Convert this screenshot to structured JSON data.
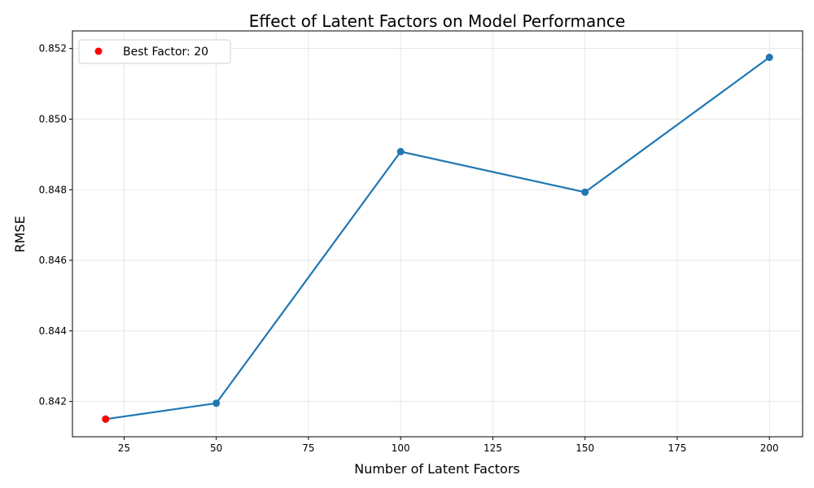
{
  "chart_data": {
    "type": "line",
    "title": "Effect of Latent Factors on Model Performance",
    "xlabel": "Number of Latent Factors",
    "ylabel": "RMSE",
    "x": [
      20,
      50,
      100,
      150,
      200
    ],
    "series": [
      {
        "values": [
          0.8415,
          0.84195,
          0.84908,
          0.84793,
          0.85175
        ],
        "color": "#1f77b4"
      }
    ],
    "highlight": {
      "label": "Best Factor: 20",
      "x": 20,
      "y": 0.8415,
      "color": "#ff0000"
    },
    "xlim": [
      11,
      209
    ],
    "ylim": [
      0.841,
      0.8525
    ],
    "xticks": [
      25,
      50,
      75,
      100,
      125,
      150,
      175,
      200
    ],
    "xtick_labels": [
      "25",
      "50",
      "75",
      "100",
      "125",
      "150",
      "175",
      "200"
    ],
    "yticks": [
      0.842,
      0.844,
      0.846,
      0.848,
      0.85,
      0.852
    ],
    "ytick_labels": [
      "0.842",
      "0.844",
      "0.846",
      "0.848",
      "0.850",
      "0.852"
    ],
    "grid": true,
    "legend_position": "top-left"
  }
}
